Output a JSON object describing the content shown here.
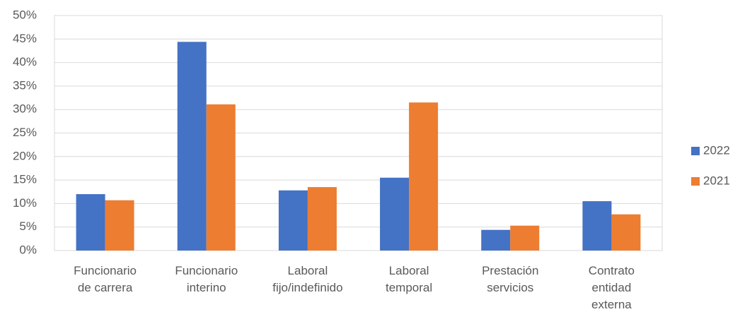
{
  "chart_data": {
    "type": "bar",
    "categories": [
      "Funcionario\nde carrera",
      "Funcionario\ninterino",
      "Laboral\nfijo/indefinido",
      "Laboral\ntemporal",
      "Prestación\nservicios",
      "Contrato\nentidad\nexterna"
    ],
    "series": [
      {
        "name": "2022",
        "color": "#4472c4",
        "values": [
          12,
          44.4,
          12.8,
          15.5,
          4.4,
          10.5
        ]
      },
      {
        "name": "2021",
        "color": "#ed7d31",
        "values": [
          10.7,
          31.1,
          13.5,
          31.5,
          5.3,
          7.7
        ]
      }
    ],
    "ylim": [
      0,
      50
    ],
    "yticks": [
      {
        "value": 0,
        "label": "0%"
      },
      {
        "value": 5,
        "label": "5%"
      },
      {
        "value": 10,
        "label": "10%"
      },
      {
        "value": 15,
        "label": "15%"
      },
      {
        "value": 20,
        "label": "20%"
      },
      {
        "value": 25,
        "label": "25%"
      },
      {
        "value": 30,
        "label": "30%"
      },
      {
        "value": 35,
        "label": "35%"
      },
      {
        "value": 40,
        "label": "40%"
      },
      {
        "value": 45,
        "label": "45%"
      },
      {
        "value": 50,
        "label": "50%"
      }
    ],
    "grid": true,
    "legend": "right"
  }
}
